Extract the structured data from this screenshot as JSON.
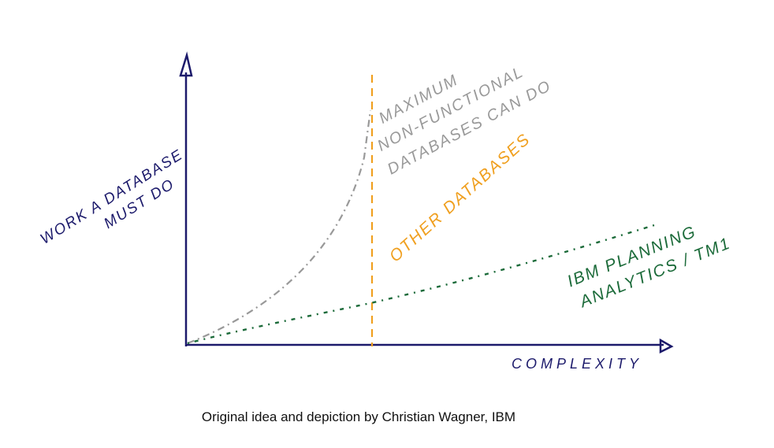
{
  "y_axis_label": [
    "WORK A DATABASE",
    "MUST DO"
  ],
  "x_axis_label": "COMPLEXITY",
  "annotations": [
    {
      "lines": [
        "MAXIMUM",
        "NON-FUNCTIONAL",
        "DATABASES CAN DO"
      ]
    },
    {
      "lines": [
        "OTHER DATABASES"
      ]
    },
    {
      "lines": [
        "IBM PLANNING",
        "ANALYTICS / TM1"
      ]
    }
  ],
  "caption": "Original idea and depiction by Christian Wagner, IBM"
}
